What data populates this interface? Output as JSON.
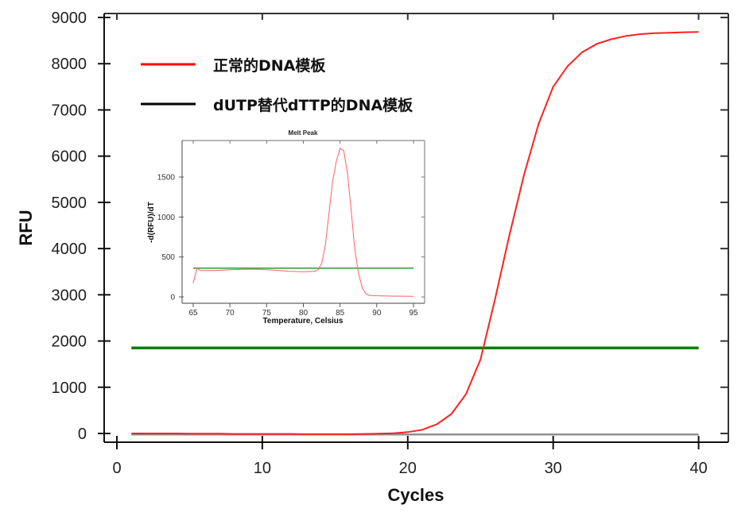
{
  "chart_data": [
    {
      "type": "line",
      "title": "",
      "xlabel": "Cycles",
      "ylabel": "RFU",
      "xlim": [
        0,
        42
      ],
      "ylim": [
        -200,
        9000
      ],
      "xticks": [
        0,
        10,
        20,
        30,
        40
      ],
      "yticks": [
        0,
        1000,
        2000,
        3000,
        4000,
        5000,
        6000,
        7000,
        8000,
        9000
      ],
      "grid": false,
      "legend_position": "upper-left (inside)",
      "legend": [
        {
          "label": "正常的DNA模板",
          "color": "#ff0000"
        },
        {
          "label": "dUTP替代dTTP的DNA模板",
          "color": "#000000"
        }
      ],
      "threshold": {
        "value": 1850,
        "color": "#008000",
        "x_range": [
          1,
          40
        ]
      },
      "series": [
        {
          "name": "正常的DNA模板",
          "color": "#ff2020",
          "x": [
            1,
            2,
            3,
            4,
            5,
            6,
            7,
            8,
            9,
            10,
            11,
            12,
            13,
            14,
            15,
            16,
            17,
            18,
            19,
            20,
            21,
            22,
            23,
            24,
            25,
            26,
            27,
            28,
            29,
            30,
            31,
            32,
            33,
            34,
            35,
            36,
            37,
            38,
            39,
            40
          ],
          "values": [
            0,
            0,
            0,
            0,
            -5,
            -5,
            -5,
            -10,
            -10,
            -10,
            -10,
            -10,
            -15,
            -15,
            -15,
            -15,
            -10,
            -5,
            5,
            30,
            80,
            200,
            420,
            850,
            1600,
            2900,
            4300,
            5600,
            6700,
            7500,
            7950,
            8250,
            8430,
            8530,
            8600,
            8640,
            8660,
            8670,
            8680,
            8685
          ]
        },
        {
          "name": "dUTP替代dTTP的DNA模板",
          "color": "#909090",
          "x": [
            1,
            5,
            10,
            15,
            20,
            25,
            30,
            35,
            40
          ],
          "values": [
            -20,
            -20,
            -20,
            -20,
            -20,
            -20,
            -20,
            -20,
            -20
          ]
        }
      ]
    },
    {
      "type": "line",
      "title": "Melt Peak",
      "xlabel": "Temperature, Celsius",
      "ylabel": "-d(RFU)/dT",
      "xlim": [
        64,
        96
      ],
      "ylim": [
        -30,
        2000
      ],
      "xticks": [
        65,
        70,
        75,
        80,
        85,
        90,
        95
      ],
      "yticks": [
        0,
        500,
        1000,
        1500
      ],
      "grid": false,
      "threshold": {
        "value": 360,
        "color": "#2e9a2e",
        "x_range": [
          65,
          95
        ]
      },
      "series": [
        {
          "name": "melt",
          "color": "#ff6060",
          "x": [
            65,
            65.5,
            66,
            68,
            70,
            72,
            74,
            76,
            78,
            80,
            81.5,
            82,
            82.5,
            83,
            83.5,
            84,
            84.5,
            85,
            85.5,
            86,
            86.5,
            87,
            87.5,
            88,
            88.5,
            89,
            90,
            92,
            95
          ],
          "values": [
            170,
            360,
            330,
            330,
            340,
            345,
            345,
            335,
            320,
            315,
            320,
            340,
            420,
            650,
            1050,
            1450,
            1700,
            1860,
            1830,
            1550,
            1100,
            600,
            300,
            120,
            40,
            20,
            15,
            10,
            8
          ]
        }
      ]
    }
  ]
}
